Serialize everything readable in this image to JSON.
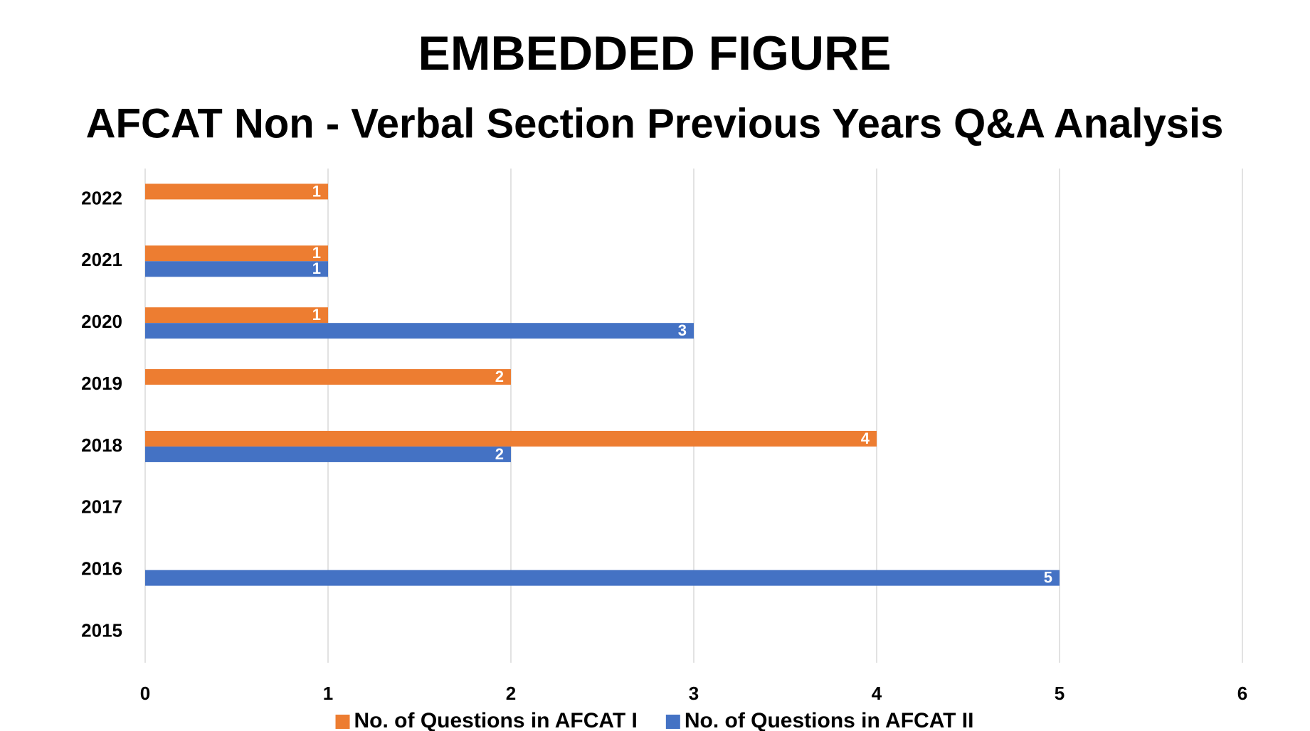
{
  "chart_data": {
    "type": "bar",
    "orientation": "horizontal",
    "title": "EMBEDDED FIGURE",
    "subtitle": "AFCAT Non - Verbal Section Previous Years Q&A Analysis",
    "categories": [
      "2022",
      "2021",
      "2020",
      "2019",
      "2018",
      "2017",
      "2016",
      "2015"
    ],
    "series": [
      {
        "name": "No. of Questions in AFCAT I",
        "color": "#ed7d31",
        "values": [
          1,
          1,
          1,
          2,
          4,
          null,
          null,
          null
        ]
      },
      {
        "name": "No. of Questions in AFCAT II",
        "color": "#4472c4",
        "values": [
          null,
          1,
          3,
          null,
          2,
          null,
          5,
          null
        ]
      }
    ],
    "xlim": [
      0,
      6
    ],
    "xticks": [
      0,
      1,
      2,
      3,
      4,
      5,
      6
    ],
    "grid": true,
    "legend": "bottom"
  }
}
